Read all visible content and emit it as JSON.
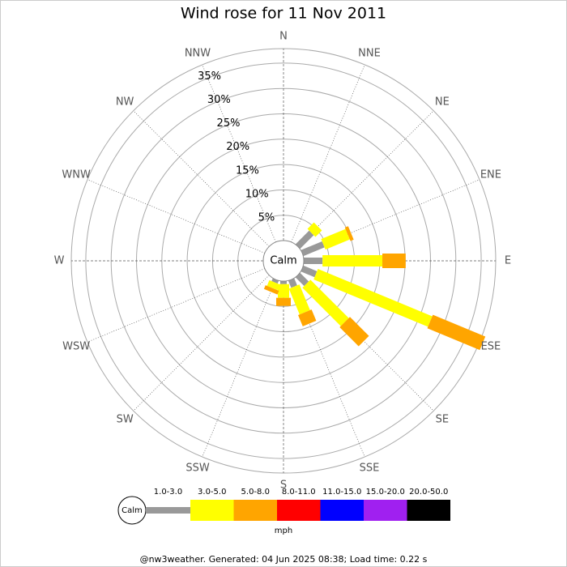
{
  "chart_data": {
    "type": "windrose",
    "title": "Wind rose for 11 Nov 2011",
    "directions": [
      "N",
      "NNE",
      "NE",
      "ENE",
      "E",
      "ESE",
      "SE",
      "SSE",
      "S",
      "SSW",
      "SW",
      "WSW",
      "W",
      "WNW",
      "NW",
      "NNW"
    ],
    "center_label": "Calm",
    "rlim": [
      0,
      40
    ],
    "rticks": [
      {
        "value": 5,
        "label": "5%"
      },
      {
        "value": 10,
        "label": "10%"
      },
      {
        "value": 15,
        "label": "15%"
      },
      {
        "value": 20,
        "label": "20%"
      },
      {
        "value": 25,
        "label": "25%"
      },
      {
        "value": 30,
        "label": "30%"
      },
      {
        "value": 35,
        "label": "35%"
      }
    ],
    "unit_label": "mph",
    "series": [
      {
        "name": "1.0-3.0",
        "color": "#999999",
        "values": [
          0,
          0,
          3.8,
          4.5,
          3.7,
          2.9,
          2.4,
          1.5,
          0.6,
          0.6,
          0,
          0,
          0,
          0,
          0,
          0
        ]
      },
      {
        "name": "3.0-5.0",
        "color": "#ffff00",
        "values": [
          0,
          0,
          1.8,
          5.2,
          11.8,
          24.4,
          10.7,
          5.5,
          2.7,
          1.2,
          0,
          0,
          0,
          0,
          0,
          0
        ]
      },
      {
        "name": "5.0-8.0",
        "color": "#ffa500",
        "values": [
          0,
          0,
          0,
          0.7,
          4.6,
          11.2,
          5.3,
          2.4,
          1.6,
          0.8,
          0,
          0,
          0,
          0,
          0,
          0
        ]
      },
      {
        "name": "8.0-11.0",
        "color": "#ff0000",
        "values": [
          0,
          0,
          0,
          0,
          0,
          0,
          0,
          0,
          0,
          0,
          0,
          0,
          0,
          0,
          0,
          0
        ]
      },
      {
        "name": "11.0-15.0",
        "color": "#0000ff",
        "values": [
          0,
          0,
          0,
          0,
          0,
          0,
          0,
          0,
          0,
          0,
          0,
          0,
          0,
          0,
          0,
          0
        ]
      },
      {
        "name": "15.0-20.0",
        "color": "#a020f0",
        "values": [
          0,
          0,
          0,
          0,
          0,
          0,
          0,
          0,
          0,
          0,
          0,
          0,
          0,
          0,
          0,
          0
        ]
      },
      {
        "name": "20.0-50.0",
        "color": "#000000",
        "values": [
          0,
          0,
          0,
          0,
          0,
          0,
          0,
          0,
          0,
          0,
          0,
          0,
          0,
          0,
          0,
          0
        ]
      }
    ]
  },
  "footer": "@nw3weather. Generated: 04 Jun 2025 08:38; Load time: 0.22 s"
}
